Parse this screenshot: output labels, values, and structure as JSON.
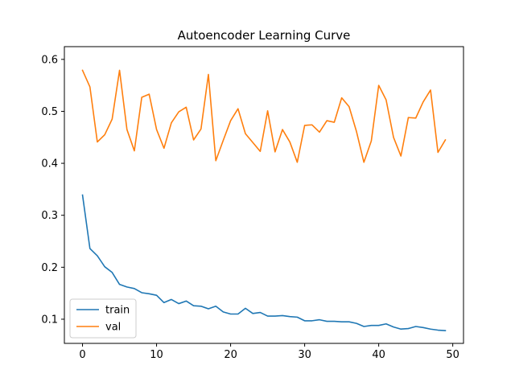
{
  "chart_data": {
    "type": "line",
    "title": "Autoencoder Learning Curve",
    "xlabel": "",
    "ylabel": "",
    "xlim": [
      -2.45,
      51.45
    ],
    "ylim": [
      0.0535,
      0.6245
    ],
    "xticks": [
      0,
      10,
      20,
      30,
      40,
      50
    ],
    "yticks": [
      0.1,
      0.2,
      0.3,
      0.4,
      0.5,
      0.6
    ],
    "grid": false,
    "legend_position": "lower-left",
    "x": [
      0,
      1,
      2,
      3,
      4,
      5,
      6,
      7,
      8,
      9,
      10,
      11,
      12,
      13,
      14,
      15,
      16,
      17,
      18,
      19,
      20,
      21,
      22,
      23,
      24,
      25,
      26,
      27,
      28,
      29,
      30,
      31,
      32,
      33,
      34,
      35,
      36,
      37,
      38,
      39,
      40,
      41,
      42,
      43,
      44,
      45,
      46,
      47,
      48,
      49
    ],
    "series": [
      {
        "name": "train",
        "color": "#1f77b4",
        "values": [
          0.339,
          0.236,
          0.222,
          0.201,
          0.19,
          0.167,
          0.162,
          0.159,
          0.151,
          0.149,
          0.146,
          0.132,
          0.138,
          0.13,
          0.135,
          0.126,
          0.125,
          0.12,
          0.125,
          0.114,
          0.11,
          0.11,
          0.121,
          0.111,
          0.113,
          0.106,
          0.106,
          0.107,
          0.105,
          0.104,
          0.097,
          0.097,
          0.099,
          0.096,
          0.096,
          0.095,
          0.095,
          0.092,
          0.086,
          0.088,
          0.088,
          0.091,
          0.085,
          0.081,
          0.082,
          0.086,
          0.084,
          0.081,
          0.079,
          0.078
        ]
      },
      {
        "name": "val",
        "color": "#ff7f0e",
        "values": [
          0.579,
          0.547,
          0.441,
          0.455,
          0.485,
          0.579,
          0.465,
          0.424,
          0.527,
          0.533,
          0.465,
          0.429,
          0.478,
          0.499,
          0.508,
          0.445,
          0.466,
          0.571,
          0.405,
          0.444,
          0.482,
          0.505,
          0.457,
          0.44,
          0.423,
          0.501,
          0.422,
          0.465,
          0.441,
          0.402,
          0.473,
          0.474,
          0.46,
          0.482,
          0.479,
          0.526,
          0.509,
          0.461,
          0.402,
          0.443,
          0.55,
          0.522,
          0.45,
          0.414,
          0.488,
          0.487,
          0.518,
          0.541,
          0.421,
          0.445
        ]
      }
    ]
  }
}
